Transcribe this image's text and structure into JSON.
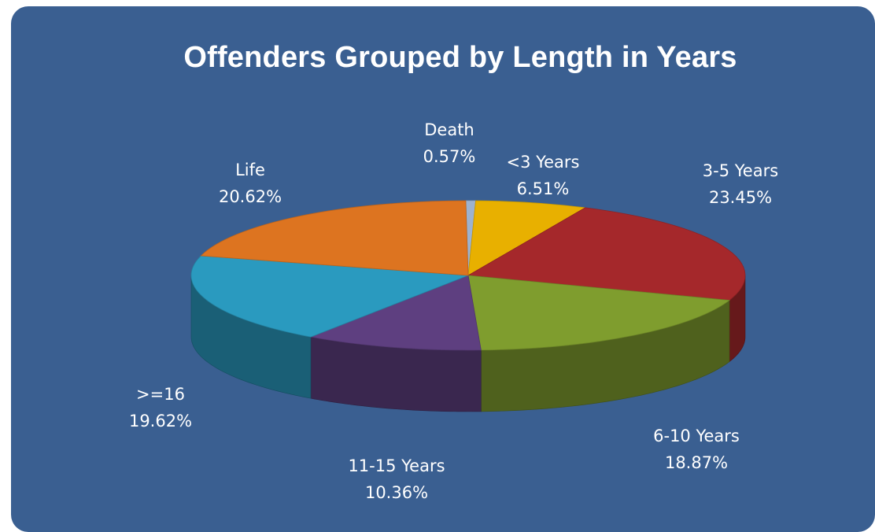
{
  "chart_data": {
    "type": "pie",
    "title": "Offenders Grouped by Length in Years",
    "categories": [
      "Death",
      "<3 Years",
      "3-5 Years",
      "6-10 Years",
      "11-15 Years",
      ">=16",
      "Life"
    ],
    "values": [
      0.57,
      6.51,
      23.45,
      18.87,
      10.36,
      19.62,
      20.62
    ],
    "labels": [
      "0.57%",
      "6.51%",
      "23.45%",
      "18.87%",
      "10.36%",
      "19.62%",
      "20.62%"
    ],
    "colors": [
      "#9db2cf",
      "#e8b000",
      "#a5282b",
      "#7f9d2e",
      "#5e3f80",
      "#2a9abf",
      "#dd7420"
    ],
    "unit": "%",
    "legend": "none"
  }
}
